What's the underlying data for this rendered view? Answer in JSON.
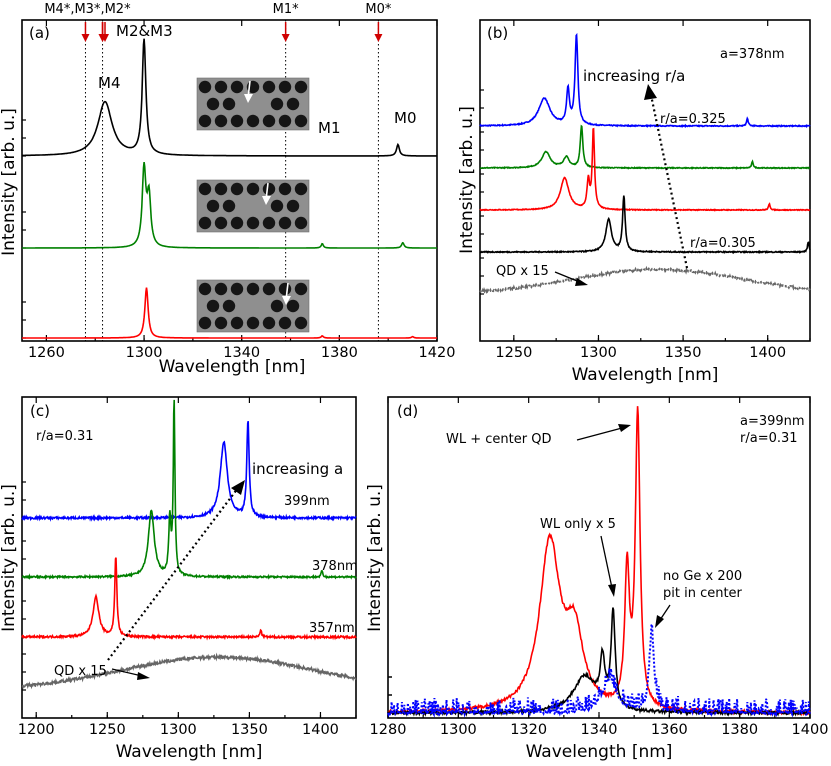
{
  "chart_data": [
    {
      "panel": "(a)",
      "type": "line",
      "xlabel": "Wavelength [nm]",
      "ylabel": "Intensity [arb. u.]",
      "xlim": [
        1250,
        1420
      ],
      "xticks": [
        1260,
        1300,
        1340,
        1380,
        1420
      ],
      "grid": false,
      "mode_markers": [
        {
          "label": "M4*,M3*,M2*",
          "x": 1276
        },
        {
          "label": "M2&M3",
          "x": 1283
        },
        {
          "label": "M1*",
          "x": 1358
        },
        {
          "label": "M0*",
          "x": 1396
        }
      ],
      "annotations": [
        "M4",
        "M2&M3",
        "M1",
        "M0"
      ],
      "series": [
        {
          "color": "#000000",
          "offset": 2,
          "peaks": [
            {
              "x": 1284,
              "h": 0.47,
              "w": 3.5
            },
            {
              "x": 1300,
              "h": 1.0,
              "w": 0.9
            },
            {
              "x": 1404,
              "h": 0.1,
              "w": 0.7
            }
          ]
        },
        {
          "color": "#008000",
          "offset": 1,
          "peaks": [
            {
              "x": 1300,
              "h": 0.88,
              "w": 0.9
            },
            {
              "x": 1302,
              "h": 0.56,
              "w": 0.9
            },
            {
              "x": 1373,
              "h": 0.05,
              "w": 0.5
            },
            {
              "x": 1406,
              "h": 0.06,
              "w": 0.6
            }
          ]
        },
        {
          "color": "#ff0000",
          "offset": 0,
          "peaks": [
            {
              "x": 1301,
              "h": 0.7,
              "w": 0.8
            },
            {
              "x": 1373,
              "h": 0.03,
              "w": 0.5
            },
            {
              "x": 1410,
              "h": 0.02,
              "w": 0.5
            }
          ]
        }
      ]
    },
    {
      "panel": "(b)",
      "type": "line",
      "xlabel": "Wavelength [nm]",
      "ylabel": "Intensity [arb. u.]",
      "xlim": [
        1230,
        1425
      ],
      "xticks": [
        1250,
        1300,
        1350,
        1400
      ],
      "grid": false,
      "annotations": [
        "a=378nm",
        "increasing r/a",
        "r/a=0.325",
        "r/a=0.305",
        "QD x 15"
      ],
      "series": [
        {
          "name": "r/a=0.325",
          "color": "#0000ff",
          "peaks": [
            {
              "x": 1268,
              "h": 0.55,
              "w": 4
            },
            {
              "x": 1282,
              "h": 0.7,
              "w": 1
            },
            {
              "x": 1287,
              "h": 1.8,
              "w": 1
            },
            {
              "x": 1388,
              "h": 0.15,
              "w": 0.6
            }
          ]
        },
        {
          "color": "#008000",
          "peaks": [
            {
              "x": 1269,
              "h": 0.38,
              "w": 3
            },
            {
              "x": 1281,
              "h": 0.25,
              "w": 2
            },
            {
              "x": 1290,
              "h": 1.0,
              "w": 0.9
            },
            {
              "x": 1391,
              "h": 0.15,
              "w": 0.6
            }
          ]
        },
        {
          "color": "#ff0000",
          "peaks": [
            {
              "x": 1280,
              "h": 0.8,
              "w": 3
            },
            {
              "x": 1294,
              "h": 0.7,
              "w": 0.9
            },
            {
              "x": 1297,
              "h": 2.0,
              "w": 0.8
            },
            {
              "x": 1401,
              "h": 0.15,
              "w": 0.6
            }
          ]
        },
        {
          "name": "r/a=0.305",
          "color": "#000000",
          "peaks": [
            {
              "x": 1306,
              "h": 0.65,
              "w": 2
            },
            {
              "x": 1315,
              "h": 1.1,
              "w": 0.9
            },
            {
              "x": 1424,
              "h": 0.2,
              "w": 0.6
            }
          ]
        },
        {
          "name": "QD x 15",
          "color": "#666666",
          "style": "dotted",
          "broad": {
            "center": 1335,
            "width": 70,
            "height": 0.55
          }
        }
      ]
    },
    {
      "panel": "(c)",
      "type": "line",
      "xlabel": "Wavelength [nm]",
      "ylabel": "Intensity [arb. u.]",
      "xlim": [
        1190,
        1425
      ],
      "xticks": [
        1200,
        1250,
        1300,
        1350,
        1400
      ],
      "grid": false,
      "annotations": [
        "r/a=0.31",
        "increasing a",
        "399nm",
        "378nm",
        "357nm",
        "QD x 15"
      ],
      "series": [
        {
          "name": "399nm",
          "color": "#0000ff",
          "peaks": [
            {
              "x": 1332,
              "h": 0.9,
              "w": 3
            },
            {
              "x": 1349,
              "h": 1.15,
              "w": 1
            }
          ]
        },
        {
          "name": "378nm",
          "color": "#008000",
          "peaks": [
            {
              "x": 1281,
              "h": 1.0,
              "w": 2.5
            },
            {
              "x": 1294,
              "h": 0.85,
              "w": 0.9
            },
            {
              "x": 1297,
              "h": 2.65,
              "w": 0.7
            },
            {
              "x": 1401,
              "h": 0.1,
              "w": 0.6
            }
          ]
        },
        {
          "name": "357nm",
          "color": "#ff0000",
          "peaks": [
            {
              "x": 1242,
              "h": 0.5,
              "w": 2.5
            },
            {
              "x": 1256,
              "h": 1.0,
              "w": 0.9
            },
            {
              "x": 1358,
              "h": 0.1,
              "w": 0.6
            }
          ]
        },
        {
          "name": "QD x 15",
          "color": "#666666",
          "broad": {
            "center": 1328,
            "width": 95,
            "height": 0.55
          }
        }
      ]
    },
    {
      "panel": "(d)",
      "type": "line",
      "xlabel": "Wavelength [nm]",
      "ylabel": "Intensity [arb. u.]",
      "xlim": [
        1280,
        1400
      ],
      "xticks": [
        1280,
        1300,
        1320,
        1340,
        1360,
        1380,
        1400
      ],
      "grid": false,
      "annotations": [
        "a=399nm",
        "r/a=0.31",
        "WL + center QD",
        "WL only x 5",
        "no Ge x 200",
        "pit in center"
      ],
      "series": [
        {
          "name": "WL + center QD",
          "color": "#ff0000",
          "peaks": [
            {
              "x": 1326,
              "h": 0.52,
              "w": 3.5
            },
            {
              "x": 1333,
              "h": 0.22,
              "w": 3
            },
            {
              "x": 1348,
              "h": 0.42,
              "w": 0.8
            },
            {
              "x": 1351,
              "h": 0.92,
              "w": 0.8
            }
          ]
        },
        {
          "name": "WL only x 5",
          "color": "#000000",
          "peaks": [
            {
              "x": 1336,
              "h": 0.12,
              "w": 4
            },
            {
              "x": 1341,
              "h": 0.15,
              "w": 0.8
            },
            {
              "x": 1344,
              "h": 0.32,
              "w": 0.7
            }
          ]
        },
        {
          "name": "no Ge x 200",
          "color": "#0000ff",
          "style": "dotted",
          "peaks": [
            {
              "x": 1343,
              "h": 0.11,
              "w": 2.5
            },
            {
              "x": 1355,
              "h": 0.27,
              "w": 0.8
            }
          ]
        }
      ]
    }
  ]
}
